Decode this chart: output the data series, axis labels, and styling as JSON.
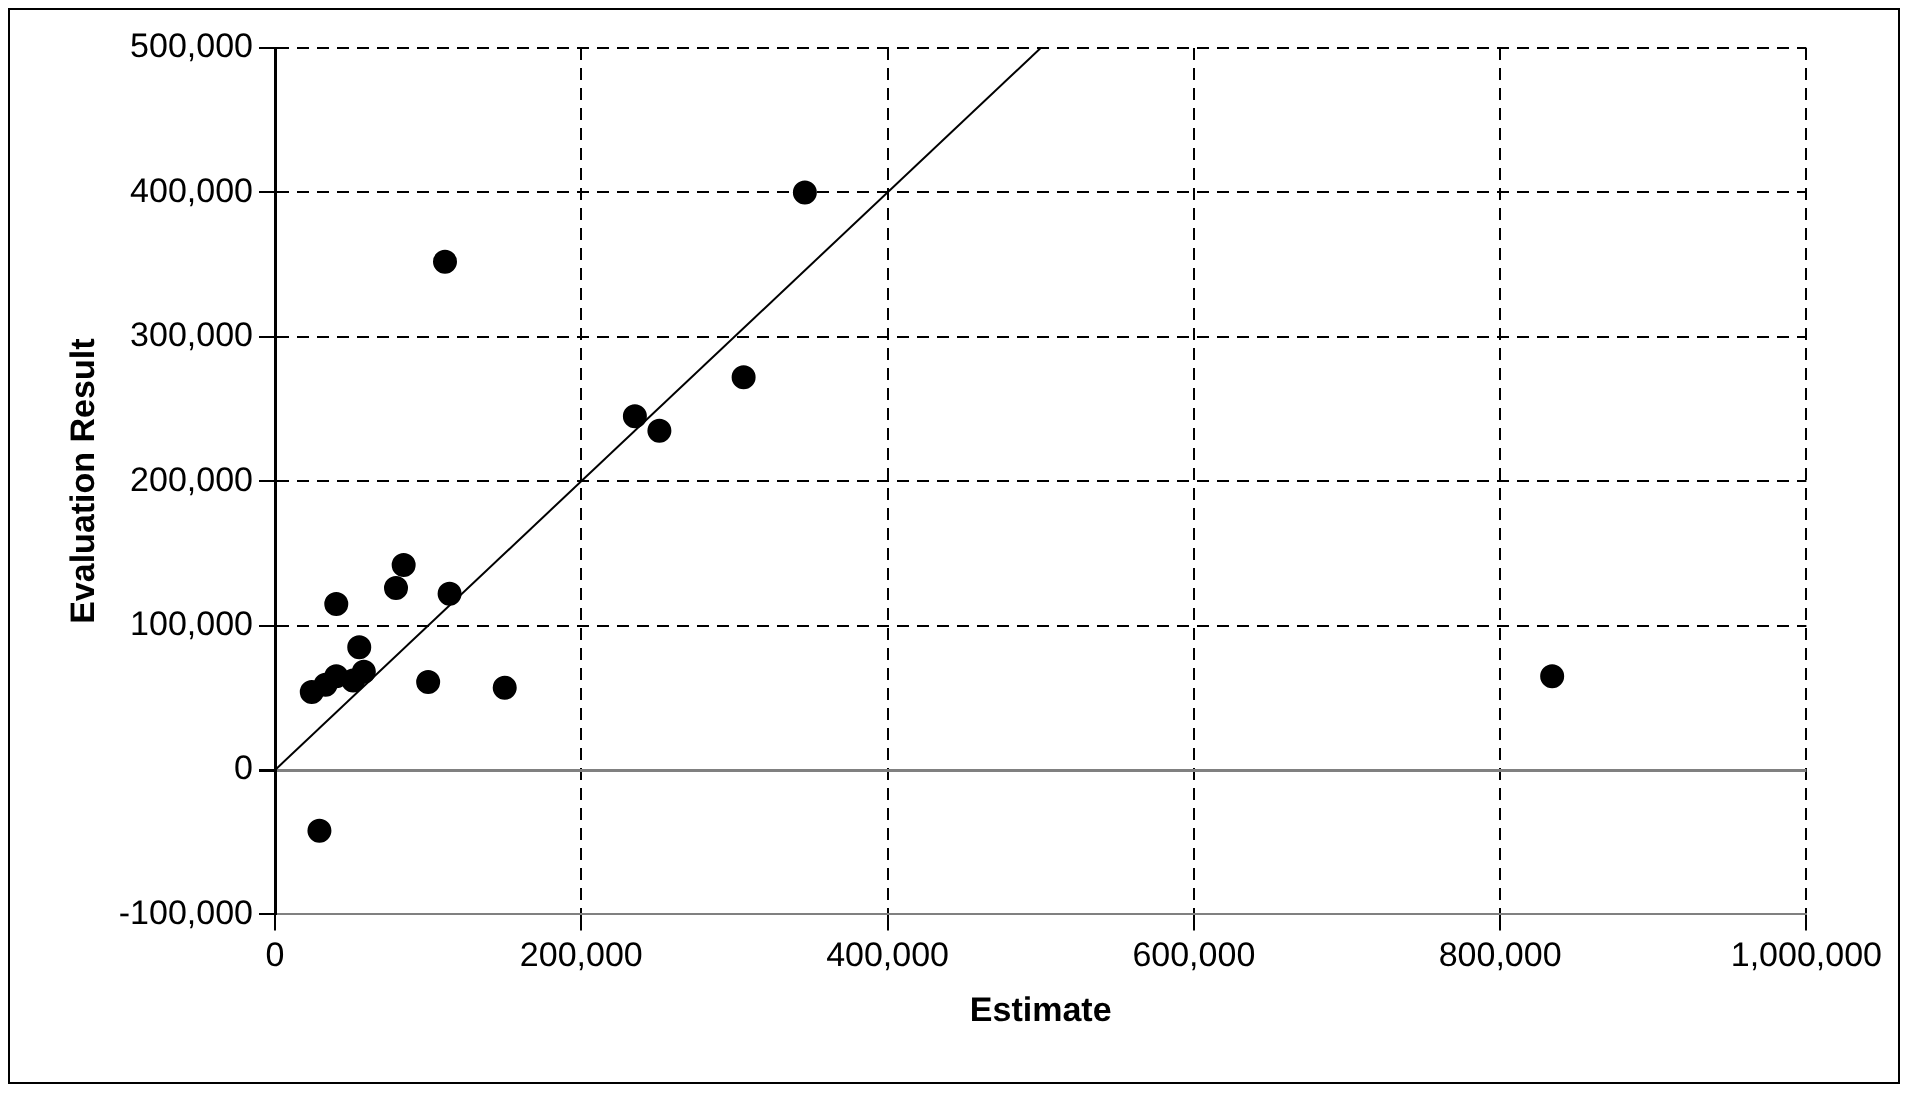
{
  "chart_data": {
    "type": "scatter",
    "xlabel": "Estimate",
    "ylabel": "Evaluation Result",
    "xlim": [
      0,
      1000000
    ],
    "xticks": [
      {
        "value": 0,
        "label": "0"
      },
      {
        "value": 200000,
        "label": "200,000"
      },
      {
        "value": 400000,
        "label": "400,000"
      },
      {
        "value": 600000,
        "label": "600,000"
      },
      {
        "value": 800000,
        "label": "800,000"
      },
      {
        "value": 1000000,
        "label": "1,000,000"
      }
    ],
    "ylim": [
      -100000,
      500000
    ],
    "yticks": [
      {
        "value": -100000,
        "label": "-100,000"
      },
      {
        "value": 0,
        "label": "0"
      },
      {
        "value": 100000,
        "label": "100,000"
      },
      {
        "value": 200000,
        "label": "200,000"
      },
      {
        "value": 300000,
        "label": "300,000"
      },
      {
        "value": 400000,
        "label": "400,000"
      },
      {
        "value": 500000,
        "label": "500,000"
      }
    ],
    "grid": true,
    "legend": false,
    "marker": "circle",
    "series": [
      {
        "color": "#000000",
        "x": [
          346000,
          111000,
          306000,
          235000,
          251000,
          84000,
          79000,
          114000,
          40000,
          55000,
          58000,
          51000,
          40000,
          33000,
          24000,
          100000,
          150000,
          29000,
          834000
        ],
        "values": [
          400000,
          352000,
          272000,
          245000,
          235000,
          142000,
          126000,
          122000,
          115000,
          85000,
          68000,
          62000,
          65000,
          59000,
          54000,
          61000,
          57000,
          -42000,
          65000
        ]
      },
      {
        "type": "line",
        "color": "#000000",
        "marker": "none",
        "line_style": "solid",
        "x": [
          0,
          500000
        ],
        "values": [
          0,
          500000
        ]
      }
    ]
  }
}
